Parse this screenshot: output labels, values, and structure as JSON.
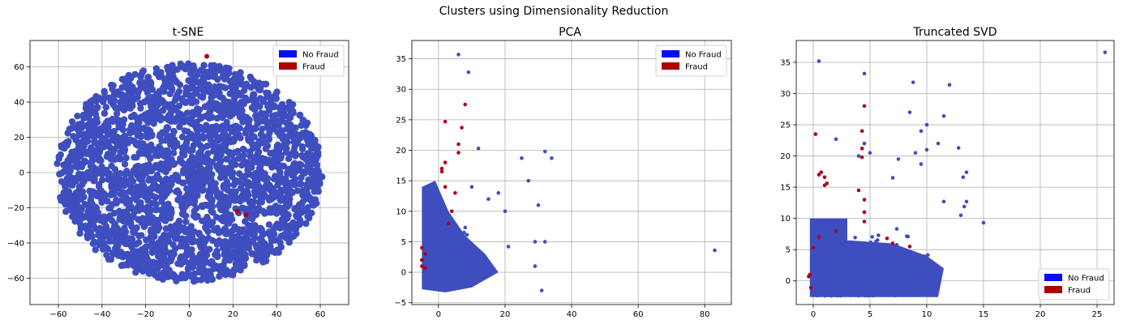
{
  "figure": {
    "suptitle": "Clusters using Dimensionality Reduction"
  },
  "colors": {
    "no_fraud_points": "#3f4ebf",
    "fraud_points": "#b0001a",
    "no_fraud_legend": "#0a0aff",
    "fraud_legend": "#b00000",
    "grid": "#b0b0b0"
  },
  "chart_data": [
    {
      "type": "scatter",
      "title": "t-SNE",
      "xlim": [
        -73,
        73
      ],
      "ylim": [
        -75,
        75
      ],
      "xticks": [
        -60,
        -40,
        -20,
        0,
        20,
        40,
        60
      ],
      "yticks": [
        -60,
        -40,
        -20,
        0,
        20,
        40,
        60
      ],
      "grid": true,
      "legend_position": "top-right",
      "series": [
        {
          "name": "No Fraud",
          "points": [
            [
              -20,
              10
            ],
            [
              -5,
              15
            ],
            [
              10,
              5
            ],
            [
              30,
              0
            ],
            [
              -40,
              -10
            ],
            [
              20,
              -40
            ],
            [
              -10,
              -50
            ],
            [
              50,
              20
            ],
            [
              -55,
              0
            ],
            [
              0,
              60
            ]
          ]
        },
        {
          "name": "Fraud",
          "points": [
            [
              8,
              66
            ],
            [
              26,
              -24
            ],
            [
              22,
              -22
            ]
          ]
        }
      ]
    },
    {
      "type": "scatter",
      "title": "PCA",
      "xlim": [
        -8,
        88
      ],
      "ylim": [
        -5.3,
        38
      ],
      "xticks": [
        0,
        20,
        40,
        60,
        80
      ],
      "yticks": [
        -5,
        0,
        5,
        10,
        15,
        20,
        25,
        30,
        35
      ],
      "grid": true,
      "legend_position": "top-right",
      "series": [
        {
          "name": "No Fraud",
          "points": [
            [
              6,
              35.7
            ],
            [
              9,
              32.8
            ],
            [
              25,
              18.7
            ],
            [
              32,
              19.8
            ],
            [
              34,
              18.7
            ],
            [
              12,
              20.3
            ],
            [
              18,
              13
            ],
            [
              20,
              10
            ],
            [
              30,
              11
            ],
            [
              29,
              5
            ],
            [
              32,
              5
            ],
            [
              83,
              3.6
            ],
            [
              31,
              -3
            ],
            [
              29,
              1
            ],
            [
              21,
              4.2
            ],
            [
              27,
              15
            ],
            [
              15,
              12
            ],
            [
              10,
              14
            ]
          ]
        },
        {
          "name": "Fraud",
          "points": [
            [
              8,
              27.5
            ],
            [
              2,
              24.7
            ],
            [
              7,
              23.7
            ],
            [
              6,
              21
            ],
            [
              6,
              19.6
            ],
            [
              2,
              18
            ],
            [
              1,
              17
            ],
            [
              1,
              16.5
            ],
            [
              2,
              14
            ],
            [
              5,
              13
            ],
            [
              4,
              10
            ],
            [
              3,
              8
            ],
            [
              -5,
              4
            ],
            [
              -4,
              3
            ],
            [
              -5,
              2
            ],
            [
              -5,
              1
            ],
            [
              -4,
              0.7
            ]
          ]
        }
      ]
    },
    {
      "type": "scatter",
      "title": "Truncated SVD",
      "xlim": [
        -1.5,
        26.5
      ],
      "ylim": [
        -3.8,
        38.5
      ],
      "xticks": [
        0,
        5,
        10,
        15,
        20,
        25
      ],
      "yticks": [
        0,
        5,
        10,
        15,
        20,
        25,
        30,
        35
      ],
      "grid": true,
      "legend_position": "bottom-right",
      "series": [
        {
          "name": "No Fraud",
          "points": [
            [
              0.5,
              35.2
            ],
            [
              4.5,
              33.2
            ],
            [
              8.8,
              31.8
            ],
            [
              12,
              31.4
            ],
            [
              25.7,
              36.6
            ],
            [
              8.5,
              27
            ],
            [
              11.5,
              26.4
            ],
            [
              10,
              25
            ],
            [
              9.5,
              24
            ],
            [
              11,
              22
            ],
            [
              12.8,
              21.3
            ],
            [
              13.5,
              17.4
            ],
            [
              13.2,
              16.6
            ],
            [
              15,
              9.3
            ],
            [
              13.5,
              12.7
            ],
            [
              13.3,
              11.9
            ],
            [
              13,
              10.5
            ],
            [
              11.5,
              12.7
            ],
            [
              2,
              22.7
            ],
            [
              4.5,
              22
            ],
            [
              4,
              20
            ],
            [
              5,
              20.5
            ],
            [
              7.5,
              19.5
            ],
            [
              9,
              20.5
            ],
            [
              10,
              21
            ],
            [
              9.5,
              18.7
            ],
            [
              7,
              16.5
            ]
          ]
        },
        {
          "name": "Fraud",
          "points": [
            [
              0.2,
              23.5
            ],
            [
              4.5,
              28
            ],
            [
              4.3,
              24
            ],
            [
              4.3,
              21.2
            ],
            [
              4.3,
              19.8
            ],
            [
              0.7,
              17.4
            ],
            [
              0.5,
              17
            ],
            [
              1,
              16.6
            ],
            [
              1.2,
              15.6
            ],
            [
              1,
              15.3
            ],
            [
              4,
              14.5
            ],
            [
              4.5,
              13
            ],
            [
              4.5,
              11
            ],
            [
              4.5,
              9.5
            ],
            [
              2,
              8
            ],
            [
              0.5,
              7
            ],
            [
              0,
              5.3
            ],
            [
              -0.3,
              1
            ],
            [
              -0.4,
              0.7
            ],
            [
              -0.2,
              -1.1
            ],
            [
              6.5,
              6.8
            ],
            [
              7,
              6
            ],
            [
              8.5,
              5.5
            ]
          ]
        }
      ]
    }
  ]
}
